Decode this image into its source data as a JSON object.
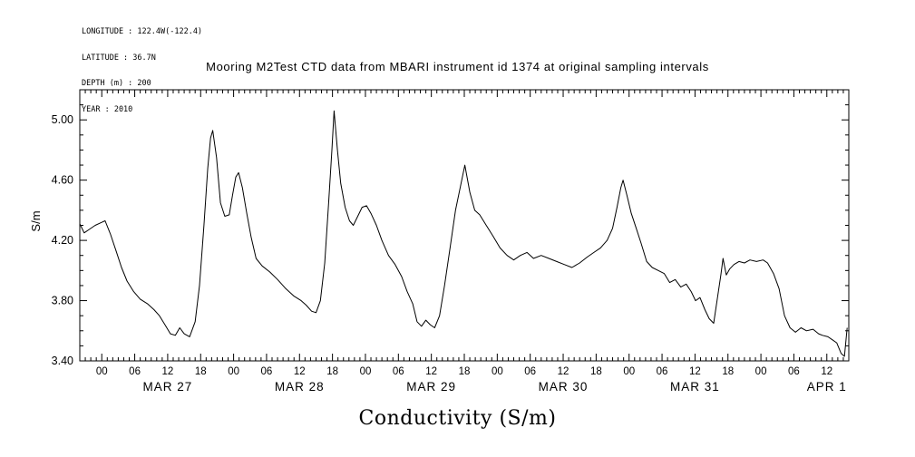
{
  "page": {
    "background": "#ffffff",
    "ink": "#000000"
  },
  "metadata": {
    "longitude": "LONGITUDE : 122.4W(-122.4)",
    "latitude": "LATITUDE : 36.7N",
    "depth": "DEPTH (m) : 200",
    "year": "YEAR : 2010"
  },
  "title": "Mooring M2Test CTD data from MBARI instrument id 1374 at original sampling intervals",
  "chart_data": {
    "type": "line",
    "title": "Mooring M2Test CTD data from MBARI instrument id 1374 at original sampling intervals",
    "xlabel": "Conductivity (S/m)",
    "ylabel": "S/m",
    "x_unit": "hours since 2010-03-27 00:00",
    "xlim": [
      -4,
      136
    ],
    "ylim": [
      3.4,
      5.2
    ],
    "grid": false,
    "legend": "none",
    "colors": {
      "line": "#000000",
      "frame": "#000000",
      "text": "#000000",
      "background": "#ffffff"
    },
    "y_minor_step": 0.1,
    "x_major_step_hours": 6,
    "x_minor_step_hours": 1,
    "y_ticks": [
      {
        "value": 3.4,
        "label": "3.40"
      },
      {
        "value": 3.8,
        "label": "3.80"
      },
      {
        "value": 4.2,
        "label": "4.20"
      },
      {
        "value": 4.6,
        "label": "4.60"
      },
      {
        "value": 5.0,
        "label": "5.00"
      }
    ],
    "x_ticks": [
      {
        "hour": 0,
        "label": "00"
      },
      {
        "hour": 6,
        "label": "06"
      },
      {
        "hour": 12,
        "label": "12"
      },
      {
        "hour": 18,
        "label": "18"
      },
      {
        "hour": 24,
        "label": "00"
      },
      {
        "hour": 30,
        "label": "06"
      },
      {
        "hour": 36,
        "label": "12"
      },
      {
        "hour": 42,
        "label": "18"
      },
      {
        "hour": 48,
        "label": "00"
      },
      {
        "hour": 54,
        "label": "06"
      },
      {
        "hour": 60,
        "label": "12"
      },
      {
        "hour": 66,
        "label": "18"
      },
      {
        "hour": 72,
        "label": "00"
      },
      {
        "hour": 78,
        "label": "06"
      },
      {
        "hour": 84,
        "label": "12"
      },
      {
        "hour": 90,
        "label": "18"
      },
      {
        "hour": 96,
        "label": "00"
      },
      {
        "hour": 102,
        "label": "06"
      },
      {
        "hour": 108,
        "label": "12"
      },
      {
        "hour": 114,
        "label": "18"
      },
      {
        "hour": 120,
        "label": "00"
      },
      {
        "hour": 126,
        "label": "06"
      },
      {
        "hour": 132,
        "label": "12"
      }
    ],
    "day_labels": [
      {
        "label": "MAR 27",
        "noon_hour": 12
      },
      {
        "label": "MAR 28",
        "noon_hour": 36
      },
      {
        "label": "MAR 29",
        "noon_hour": 60
      },
      {
        "label": "MAR 30",
        "noon_hour": 84
      },
      {
        "label": "MAR 31",
        "noon_hour": 108
      },
      {
        "label": "APR 1",
        "noon_hour": 132
      }
    ],
    "series": [
      {
        "name": "conductivity",
        "units": "S/m",
        "points": [
          [
            -4.0,
            4.31
          ],
          [
            -3.2,
            4.25
          ],
          [
            -2.4,
            4.27
          ],
          [
            -1.2,
            4.3
          ],
          [
            0.0,
            4.32
          ],
          [
            0.6,
            4.33
          ],
          [
            1.6,
            4.24
          ],
          [
            2.6,
            4.13
          ],
          [
            3.6,
            4.02
          ],
          [
            4.6,
            3.93
          ],
          [
            5.8,
            3.86
          ],
          [
            7.0,
            3.81
          ],
          [
            8.3,
            3.78
          ],
          [
            9.5,
            3.74
          ],
          [
            10.5,
            3.7
          ],
          [
            11.5,
            3.64
          ],
          [
            12.5,
            3.58
          ],
          [
            13.4,
            3.57
          ],
          [
            14.2,
            3.62
          ],
          [
            15.0,
            3.58
          ],
          [
            16.0,
            3.56
          ],
          [
            17.0,
            3.66
          ],
          [
            17.8,
            3.9
          ],
          [
            18.6,
            4.3
          ],
          [
            19.3,
            4.68
          ],
          [
            19.8,
            4.88
          ],
          [
            20.2,
            4.93
          ],
          [
            20.9,
            4.75
          ],
          [
            21.6,
            4.45
          ],
          [
            22.4,
            4.36
          ],
          [
            23.2,
            4.37
          ],
          [
            23.8,
            4.5
          ],
          [
            24.4,
            4.62
          ],
          [
            24.9,
            4.65
          ],
          [
            25.6,
            4.55
          ],
          [
            26.4,
            4.38
          ],
          [
            27.2,
            4.22
          ],
          [
            28.1,
            4.08
          ],
          [
            29.2,
            4.03
          ],
          [
            30.6,
            3.99
          ],
          [
            32.0,
            3.94
          ],
          [
            33.5,
            3.88
          ],
          [
            35.0,
            3.83
          ],
          [
            36.3,
            3.8
          ],
          [
            37.2,
            3.77
          ],
          [
            38.2,
            3.73
          ],
          [
            39.0,
            3.72
          ],
          [
            39.8,
            3.8
          ],
          [
            40.6,
            4.05
          ],
          [
            41.3,
            4.45
          ],
          [
            41.9,
            4.8
          ],
          [
            42.3,
            5.06
          ],
          [
            42.9,
            4.8
          ],
          [
            43.5,
            4.58
          ],
          [
            44.3,
            4.42
          ],
          [
            45.1,
            4.33
          ],
          [
            45.8,
            4.3
          ],
          [
            46.6,
            4.36
          ],
          [
            47.4,
            4.42
          ],
          [
            48.2,
            4.43
          ],
          [
            49.0,
            4.38
          ],
          [
            50.0,
            4.3
          ],
          [
            51.0,
            4.2
          ],
          [
            52.2,
            4.1
          ],
          [
            53.4,
            4.04
          ],
          [
            54.6,
            3.96
          ],
          [
            55.6,
            3.86
          ],
          [
            56.6,
            3.78
          ],
          [
            57.4,
            3.66
          ],
          [
            58.2,
            3.63
          ],
          [
            59.0,
            3.67
          ],
          [
            59.8,
            3.64
          ],
          [
            60.6,
            3.62
          ],
          [
            61.5,
            3.7
          ],
          [
            62.4,
            3.9
          ],
          [
            63.4,
            4.15
          ],
          [
            64.4,
            4.4
          ],
          [
            65.3,
            4.56
          ],
          [
            66.1,
            4.7
          ],
          [
            67.0,
            4.52
          ],
          [
            67.9,
            4.4
          ],
          [
            68.8,
            4.37
          ],
          [
            70.0,
            4.3
          ],
          [
            71.2,
            4.23
          ],
          [
            72.5,
            4.15
          ],
          [
            73.8,
            4.1
          ],
          [
            75.0,
            4.07
          ],
          [
            76.2,
            4.1
          ],
          [
            77.4,
            4.12
          ],
          [
            78.6,
            4.08
          ],
          [
            80.0,
            4.1
          ],
          [
            81.4,
            4.08
          ],
          [
            82.8,
            4.06
          ],
          [
            84.2,
            4.04
          ],
          [
            85.6,
            4.02
          ],
          [
            87.0,
            4.05
          ],
          [
            88.4,
            4.09
          ],
          [
            89.6,
            4.12
          ],
          [
            90.8,
            4.15
          ],
          [
            92.0,
            4.2
          ],
          [
            93.0,
            4.28
          ],
          [
            93.8,
            4.42
          ],
          [
            94.5,
            4.55
          ],
          [
            94.9,
            4.6
          ],
          [
            95.6,
            4.5
          ],
          [
            96.4,
            4.38
          ],
          [
            97.3,
            4.28
          ],
          [
            98.2,
            4.18
          ],
          [
            99.2,
            4.06
          ],
          [
            100.2,
            4.02
          ],
          [
            101.3,
            4.0
          ],
          [
            102.4,
            3.98
          ],
          [
            103.4,
            3.92
          ],
          [
            104.4,
            3.94
          ],
          [
            105.4,
            3.89
          ],
          [
            106.4,
            3.91
          ],
          [
            107.3,
            3.86
          ],
          [
            108.1,
            3.8
          ],
          [
            108.9,
            3.82
          ],
          [
            109.8,
            3.74
          ],
          [
            110.6,
            3.68
          ],
          [
            111.4,
            3.65
          ],
          [
            112.1,
            3.82
          ],
          [
            112.7,
            3.97
          ],
          [
            113.1,
            4.08
          ],
          [
            113.7,
            3.97
          ],
          [
            114.3,
            4.01
          ],
          [
            115.1,
            4.04
          ],
          [
            116.0,
            4.06
          ],
          [
            117.0,
            4.05
          ],
          [
            118.0,
            4.07
          ],
          [
            119.2,
            4.06
          ],
          [
            120.4,
            4.07
          ],
          [
            121.2,
            4.05
          ],
          [
            122.3,
            3.98
          ],
          [
            123.3,
            3.88
          ],
          [
            124.3,
            3.7
          ],
          [
            125.3,
            3.62
          ],
          [
            126.3,
            3.59
          ],
          [
            127.3,
            3.62
          ],
          [
            128.3,
            3.6
          ],
          [
            129.5,
            3.61
          ],
          [
            130.5,
            3.58
          ],
          [
            131.2,
            3.57
          ],
          [
            132.2,
            3.56
          ],
          [
            133.0,
            3.54
          ],
          [
            133.8,
            3.52
          ],
          [
            134.6,
            3.45
          ],
          [
            135.2,
            3.43
          ],
          [
            135.7,
            3.62
          ]
        ]
      }
    ]
  }
}
